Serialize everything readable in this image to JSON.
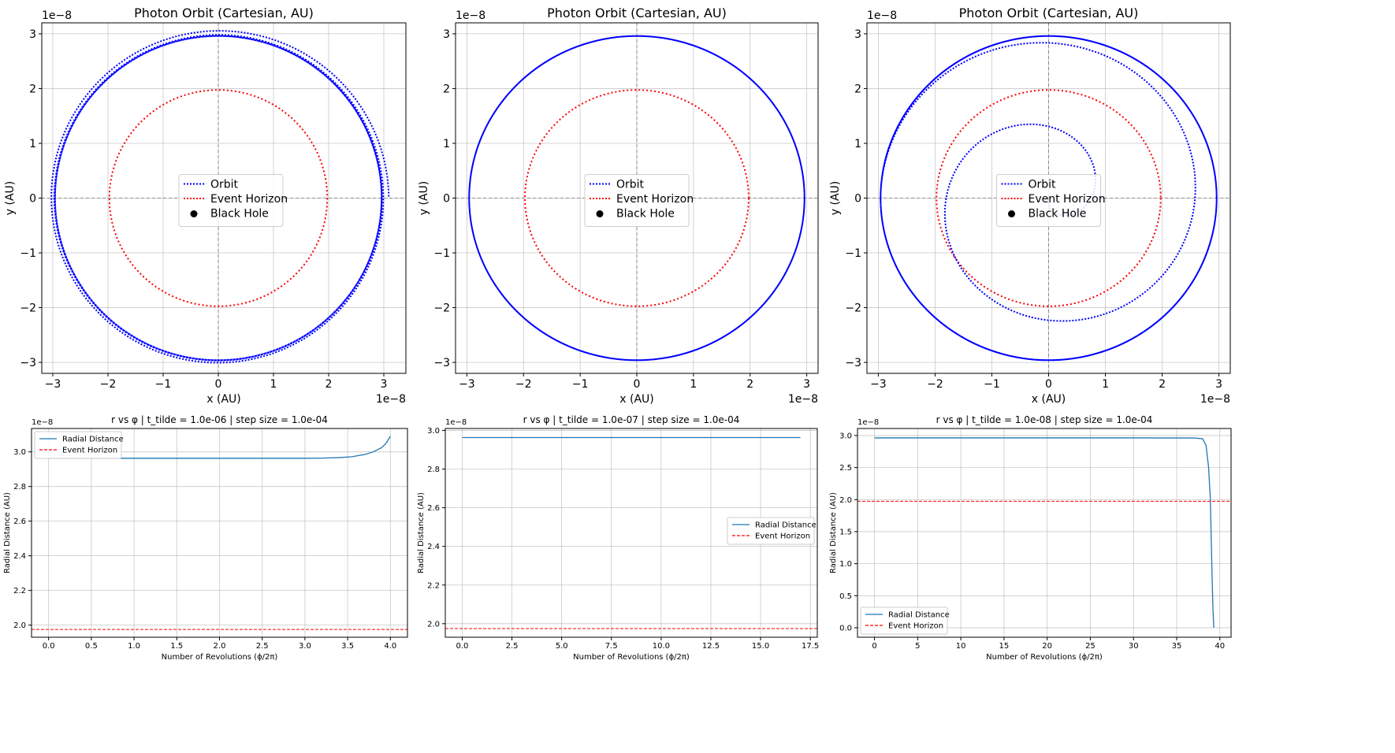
{
  "chart_data": [
    {
      "type": "line",
      "title": "Photon Orbit (Cartesian, AU)",
      "xlabel": "x (AU)",
      "ylabel": "y (AU)",
      "axis_offset_text": "1e−8",
      "xlim": [
        -3.2,
        3.4
      ],
      "ylim": [
        -3.2,
        3.2
      ],
      "xticks": [
        -3,
        -2,
        -1,
        0,
        1,
        2,
        3
      ],
      "yticks": [
        -3,
        -2,
        -1,
        0,
        1,
        2,
        3
      ],
      "grid": true,
      "legend_position": "center",
      "legend": [
        "Orbit",
        "Event Horizon",
        "Black Hole"
      ],
      "orbit": {
        "r_start": 2.96,
        "r_end": 3.09,
        "revolutions": 4.0,
        "fate": "escapes",
        "color": "#0000ff"
      },
      "event_horizon": {
        "radius": 1.975,
        "color": "#ff0000"
      },
      "black_hole": {
        "x": 0,
        "y": 0,
        "color": "#000000"
      }
    },
    {
      "type": "line",
      "title": "Photon Orbit (Cartesian, AU)",
      "xlabel": "x (AU)",
      "ylabel": "y (AU)",
      "axis_offset_text": "1e−8",
      "xlim": [
        -3.2,
        3.2
      ],
      "ylim": [
        -3.2,
        3.2
      ],
      "xticks": [
        -3,
        -2,
        -1,
        0,
        1,
        2,
        3
      ],
      "yticks": [
        -3,
        -2,
        -1,
        0,
        1,
        2,
        3
      ],
      "grid": true,
      "legend_position": "center",
      "legend": [
        "Orbit",
        "Event Horizon",
        "Black Hole"
      ],
      "orbit": {
        "r_start": 2.96,
        "r_end": 2.96,
        "revolutions": 17.0,
        "fate": "stable",
        "color": "#0000ff"
      },
      "event_horizon": {
        "radius": 1.975,
        "color": "#ff0000"
      },
      "black_hole": {
        "x": 0,
        "y": 0,
        "color": "#000000"
      }
    },
    {
      "type": "line",
      "title": "Photon Orbit (Cartesian, AU)",
      "xlabel": "x (AU)",
      "ylabel": "y (AU)",
      "axis_offset_text": "1e−8",
      "xlim": [
        -3.2,
        3.2
      ],
      "ylim": [
        -3.2,
        3.2
      ],
      "xticks": [
        -3,
        -2,
        -1,
        0,
        1,
        2,
        3
      ],
      "yticks": [
        -3,
        -2,
        -1,
        0,
        1,
        2,
        3
      ],
      "grid": true,
      "legend_position": "center",
      "legend": [
        "Orbit",
        "Event Horizon",
        "Black Hole"
      ],
      "orbit": {
        "r_start": 2.96,
        "r_end": 0.0,
        "revolutions": 39.3,
        "fate": "falls in",
        "color": "#0000ff"
      },
      "event_horizon": {
        "radius": 1.975,
        "color": "#ff0000"
      },
      "black_hole": {
        "x": 0,
        "y": 0,
        "color": "#000000"
      }
    },
    {
      "type": "line",
      "title": "r vs φ | t_tilde = 1.0e-06 | step size = 1.0e-04",
      "xlabel": "Number of Revolutions (ϕ/2π)",
      "ylabel": "Radial Distance (AU)",
      "axis_offset_text": "1e−8",
      "xlim": [
        -0.2,
        4.2
      ],
      "ylim": [
        1.93,
        3.135
      ],
      "xticks": [
        0.0,
        0.5,
        1.0,
        1.5,
        2.0,
        2.5,
        3.0,
        3.5,
        4.0
      ],
      "xtick_labels": [
        "0.0",
        "0.5",
        "1.0",
        "1.5",
        "2.0",
        "2.5",
        "3.0",
        "3.5",
        "4.0"
      ],
      "yticks": [
        2.0,
        2.2,
        2.4,
        2.6,
        2.8,
        3.0
      ],
      "ytick_labels": [
        "2.0",
        "2.2",
        "2.4",
        "2.6",
        "2.8",
        "3.0"
      ],
      "grid": true,
      "legend_position": "upper left",
      "series": [
        {
          "name": "Radial Distance",
          "color": "#1f77b4",
          "x": [
            0.0,
            0.5,
            1.0,
            1.5,
            2.0,
            2.5,
            3.0,
            3.2,
            3.4,
            3.55,
            3.7,
            3.8,
            3.9,
            3.95,
            4.0
          ],
          "y": [
            2.963,
            2.963,
            2.963,
            2.963,
            2.963,
            2.963,
            2.963,
            2.964,
            2.967,
            2.972,
            2.985,
            3.0,
            3.025,
            3.05,
            3.09
          ]
        },
        {
          "name": "Event Horizon",
          "color": "#ff0000",
          "style": "dashed",
          "y_constant": 1.975
        }
      ]
    },
    {
      "type": "line",
      "title": "r vs φ | t_tilde = 1.0e-07 | step size = 1.0e-04",
      "xlabel": "Number of Revolutions (ϕ/2π)",
      "ylabel": "Radial Distance (AU)",
      "axis_offset_text": "1e−8",
      "xlim": [
        -0.85,
        17.85
      ],
      "ylim": [
        1.93,
        3.01
      ],
      "xticks": [
        0.0,
        2.5,
        5.0,
        7.5,
        10.0,
        12.5,
        15.0,
        17.5
      ],
      "xtick_labels": [
        "0.0",
        "2.5",
        "5.0",
        "7.5",
        "10.0",
        "12.5",
        "15.0",
        "17.5"
      ],
      "yticks": [
        2.0,
        2.2,
        2.4,
        2.6,
        2.8,
        3.0
      ],
      "ytick_labels": [
        "2.0",
        "2.2",
        "2.4",
        "2.6",
        "2.8",
        "3.0"
      ],
      "grid": true,
      "legend_position": "center right",
      "series": [
        {
          "name": "Radial Distance",
          "color": "#1f77b4",
          "x": [
            0.0,
            17.0
          ],
          "y": [
            2.963,
            2.963
          ]
        },
        {
          "name": "Event Horizon",
          "color": "#ff0000",
          "style": "dashed",
          "y_constant": 1.975
        }
      ]
    },
    {
      "type": "line",
      "title": "r vs φ | t_tilde = 1.0e-08 | step size = 1.0e-04",
      "xlabel": "Number of Revolutions (ϕ/2π)",
      "ylabel": "Radial Distance (AU)",
      "axis_offset_text": "1e−8",
      "xlim": [
        -1.97,
        41.3
      ],
      "ylim": [
        -0.148,
        3.11
      ],
      "xticks": [
        0,
        5,
        10,
        15,
        20,
        25,
        30,
        35,
        40
      ],
      "xtick_labels": [
        "0",
        "5",
        "10",
        "15",
        "20",
        "25",
        "30",
        "35",
        "40"
      ],
      "yticks": [
        0.0,
        0.5,
        1.0,
        1.5,
        2.0,
        2.5,
        3.0
      ],
      "ytick_labels": [
        "0.0",
        "0.5",
        "1.0",
        "1.5",
        "2.0",
        "2.5",
        "3.0"
      ],
      "grid": true,
      "legend_position": "lower left",
      "series": [
        {
          "name": "Radial Distance",
          "color": "#1f77b4",
          "x": [
            0.0,
            10.0,
            20.0,
            30.0,
            37.0,
            38.0,
            38.4,
            38.7,
            38.9,
            39.0,
            39.1,
            39.2,
            39.3
          ],
          "y": [
            2.963,
            2.963,
            2.963,
            2.963,
            2.962,
            2.95,
            2.85,
            2.5,
            2.0,
            1.4,
            0.8,
            0.3,
            0.0
          ]
        },
        {
          "name": "Event Horizon",
          "color": "#ff0000",
          "style": "dashed",
          "y_constant": 1.975
        }
      ]
    }
  ]
}
